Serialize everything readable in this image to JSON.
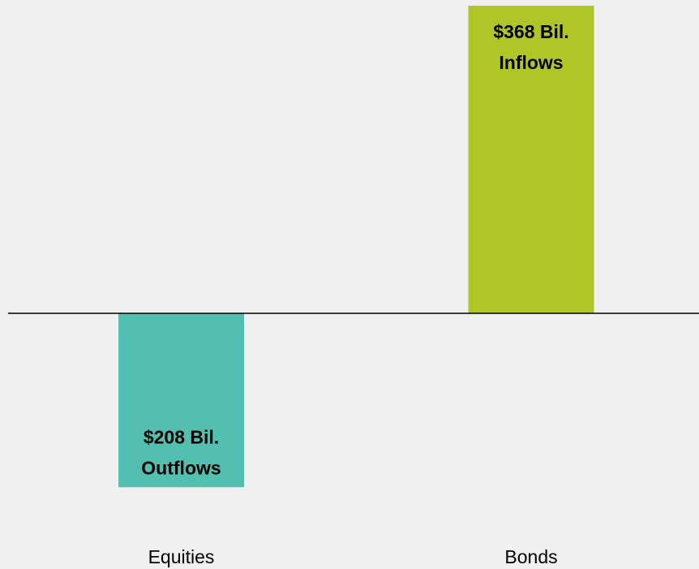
{
  "chart_data": {
    "type": "bar",
    "categories": [
      "Equities",
      "Bonds"
    ],
    "values": [
      -208,
      368
    ],
    "value_labels": [
      "$208 Bil.",
      "$368 Bil."
    ],
    "flow_labels": [
      "Outflows",
      "Inflows"
    ],
    "colors": [
      "#52bfb0",
      "#b0c526"
    ],
    "ylim": [
      -300,
      370
    ]
  }
}
